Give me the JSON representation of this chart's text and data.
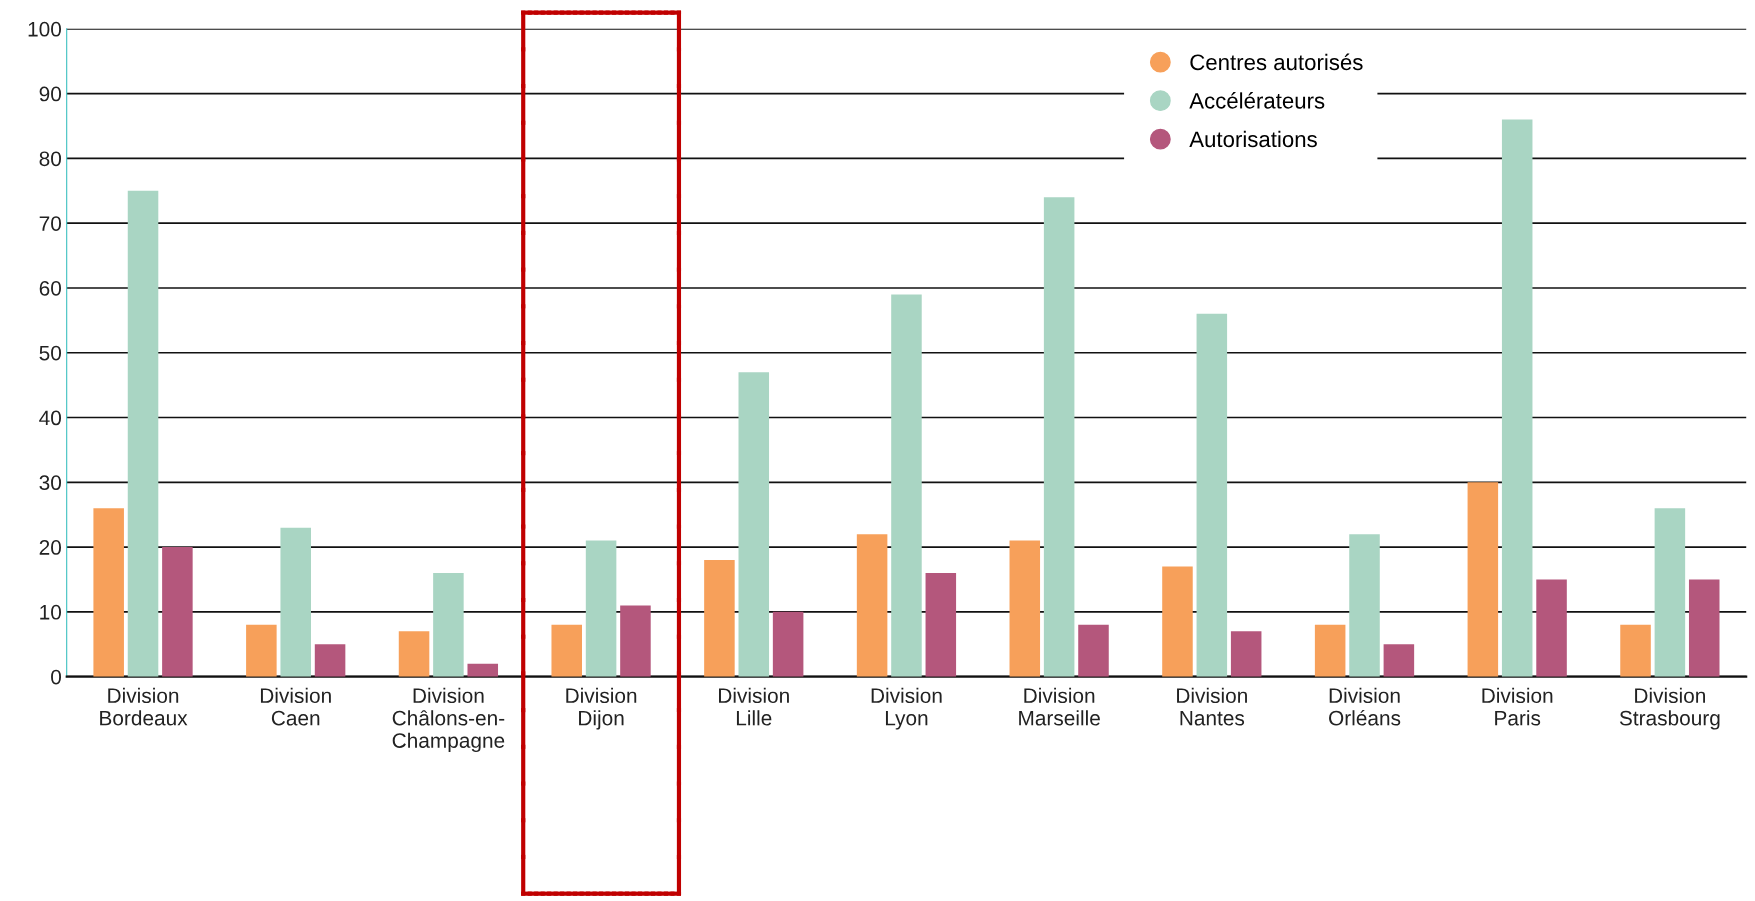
{
  "chart_data": {
    "type": "bar",
    "categories": [
      "Division\nBordeaux",
      "Division\nCaen",
      "Division\nChâlons-en-\nChampagne",
      "Division\nDijon",
      "Division\nLille",
      "Division\nLyon",
      "Division\nMarseille",
      "Division\nNantes",
      "Division\nOrléans",
      "Division\nParis",
      "Division\nStrasbourg"
    ],
    "series": [
      {
        "name": "Centres autorisés",
        "color": "#f7a05a",
        "values": [
          26,
          8,
          7,
          8,
          18,
          22,
          21,
          17,
          8,
          30,
          8
        ]
      },
      {
        "name": "Accélérateurs",
        "color": "#a9d5c3",
        "values": [
          75,
          23,
          16,
          21,
          47,
          59,
          74,
          56,
          22,
          86,
          26
        ]
      },
      {
        "name": "Autorisations",
        "color": "#b4577c",
        "values": [
          20,
          5,
          2,
          11,
          10,
          16,
          8,
          7,
          5,
          15,
          15
        ]
      }
    ],
    "ylim": [
      0,
      100
    ],
    "yticks": [
      0,
      10,
      20,
      30,
      40,
      50,
      60,
      70,
      80,
      90,
      100
    ],
    "grid": "y",
    "legend": "top right"
  }
}
